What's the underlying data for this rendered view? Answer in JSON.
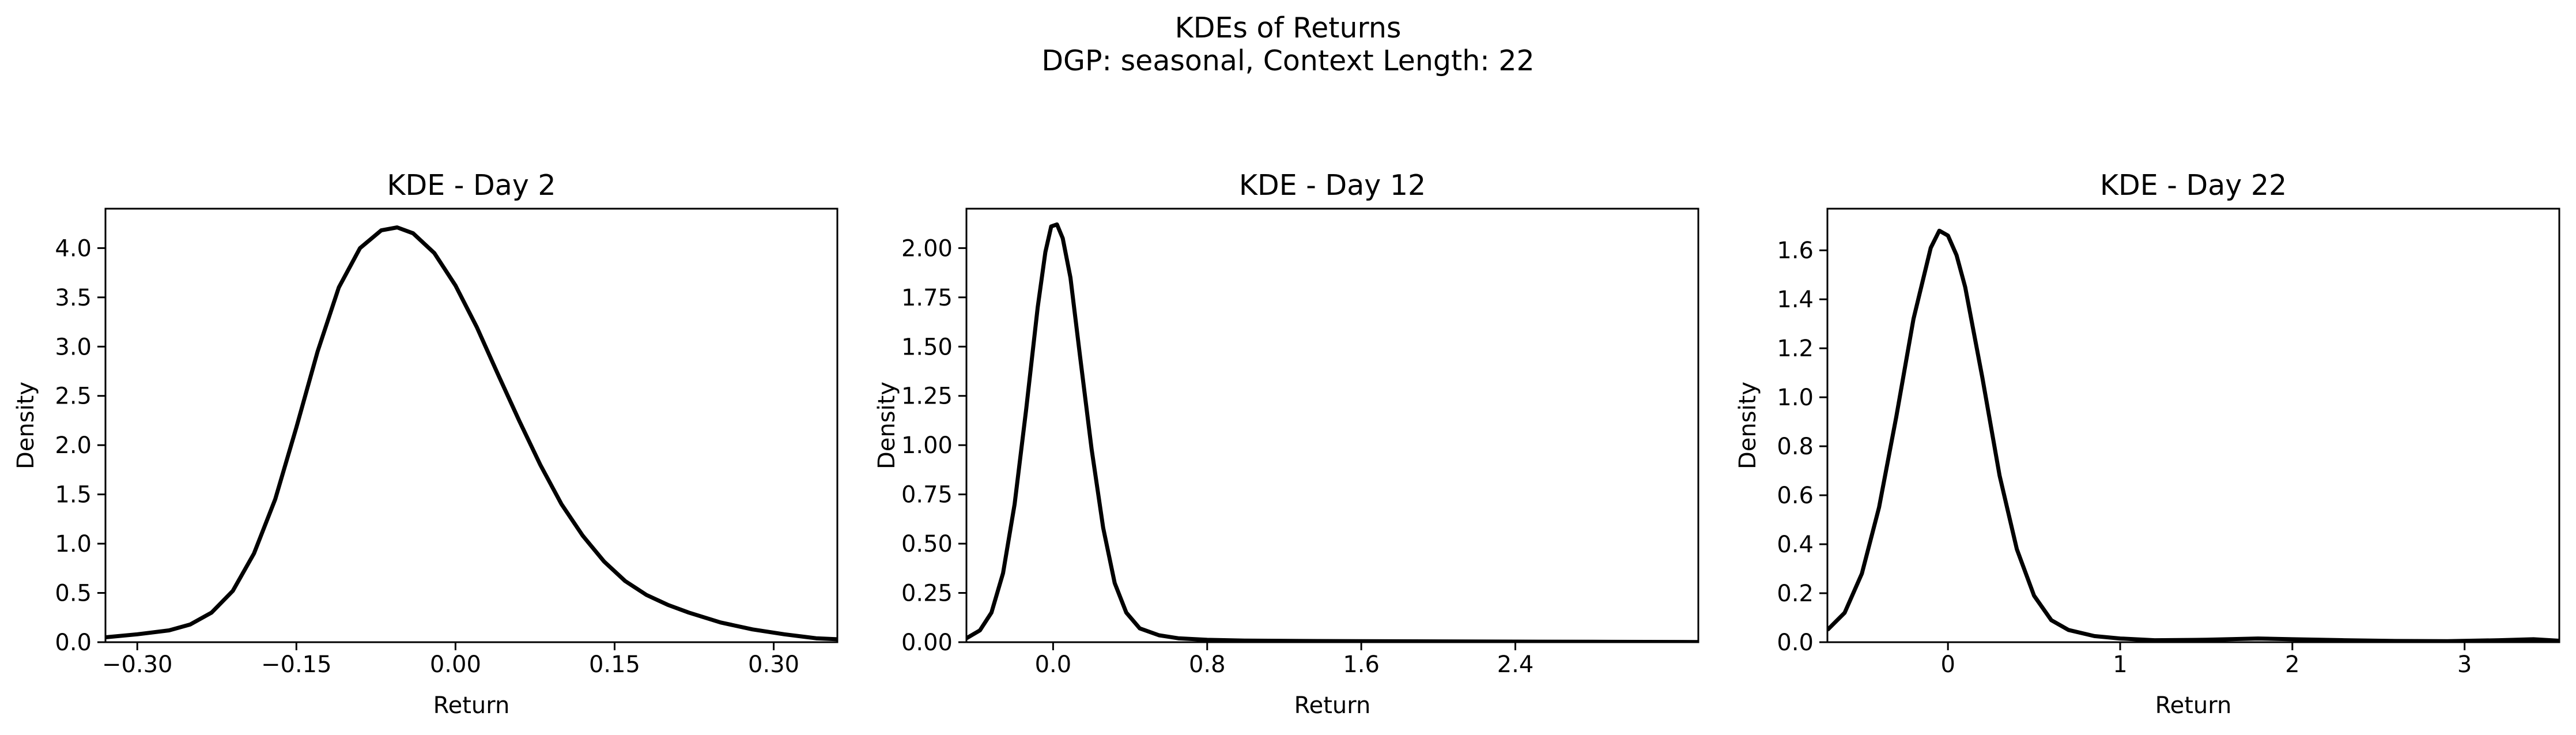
{
  "figure": {
    "title_line1": "KDEs of Returns",
    "title_line2": "DGP: seasonal, Context Length: 22"
  },
  "chart_data": [
    {
      "type": "line",
      "title": "KDE - Day 2",
      "xlabel": "Return",
      "ylabel": "Density",
      "xlim": [
        -0.33,
        0.36
      ],
      "ylim": [
        0,
        4.4
      ],
      "xticks": [
        -0.3,
        -0.15,
        0.0,
        0.15,
        0.3
      ],
      "xtick_labels": [
        "−0.30",
        "−0.15",
        "0.00",
        "0.15",
        "0.30"
      ],
      "yticks": [
        0.0,
        0.5,
        1.0,
        1.5,
        2.0,
        2.5,
        3.0,
        3.5,
        4.0
      ],
      "ytick_labels": [
        "0.0",
        "0.5",
        "1.0",
        "1.5",
        "2.0",
        "2.5",
        "3.0",
        "3.5",
        "4.0"
      ],
      "color": "#000000",
      "x": [
        -0.33,
        -0.3,
        -0.27,
        -0.25,
        -0.23,
        -0.21,
        -0.19,
        -0.17,
        -0.15,
        -0.13,
        -0.11,
        -0.09,
        -0.07,
        -0.055,
        -0.04,
        -0.02,
        0.0,
        0.02,
        0.04,
        0.06,
        0.08,
        0.1,
        0.12,
        0.14,
        0.16,
        0.18,
        0.2,
        0.22,
        0.25,
        0.28,
        0.31,
        0.34,
        0.36
      ],
      "y": [
        0.05,
        0.08,
        0.12,
        0.18,
        0.3,
        0.52,
        0.9,
        1.45,
        2.18,
        2.95,
        3.6,
        4.0,
        4.18,
        4.21,
        4.15,
        3.95,
        3.62,
        3.2,
        2.72,
        2.25,
        1.8,
        1.4,
        1.08,
        0.82,
        0.62,
        0.48,
        0.38,
        0.3,
        0.2,
        0.13,
        0.08,
        0.04,
        0.03
      ]
    },
    {
      "type": "line",
      "title": "KDE - Day 12",
      "xlabel": "Return",
      "ylabel": "Density",
      "xlim": [
        -0.45,
        3.35
      ],
      "ylim": [
        0,
        2.2
      ],
      "xticks": [
        0.0,
        0.8,
        1.6,
        2.4
      ],
      "xtick_labels": [
        "0.0",
        "0.8",
        "1.6",
        "2.4"
      ],
      "yticks": [
        0.0,
        0.25,
        0.5,
        0.75,
        1.0,
        1.25,
        1.5,
        1.75,
        2.0
      ],
      "ytick_labels": [
        "0.00",
        "0.25",
        "0.50",
        "0.75",
        "1.00",
        "1.25",
        "1.50",
        "1.75",
        "2.00"
      ],
      "color": "#000000",
      "x": [
        -0.45,
        -0.38,
        -0.32,
        -0.26,
        -0.2,
        -0.14,
        -0.08,
        -0.04,
        -0.01,
        0.02,
        0.05,
        0.09,
        0.14,
        0.2,
        0.26,
        0.32,
        0.38,
        0.45,
        0.55,
        0.65,
        0.8,
        1.0,
        1.3,
        1.6,
        2.0,
        2.4,
        2.8,
        3.35
      ],
      "y": [
        0.02,
        0.06,
        0.15,
        0.35,
        0.7,
        1.18,
        1.7,
        1.98,
        2.11,
        2.12,
        2.05,
        1.85,
        1.45,
        0.98,
        0.58,
        0.3,
        0.15,
        0.07,
        0.035,
        0.02,
        0.012,
        0.008,
        0.006,
        0.005,
        0.004,
        0.003,
        0.002,
        0.001
      ]
    },
    {
      "type": "line",
      "title": "KDE - Day 22",
      "xlabel": "Return",
      "ylabel": "Density",
      "xlim": [
        -0.7,
        3.55
      ],
      "ylim": [
        0,
        1.77
      ],
      "xticks": [
        0,
        1,
        2,
        3
      ],
      "xtick_labels": [
        "0",
        "1",
        "2",
        "3"
      ],
      "yticks": [
        0.0,
        0.2,
        0.4,
        0.6,
        0.8,
        1.0,
        1.2,
        1.4,
        1.6
      ],
      "ytick_labels": [
        "0.0",
        "0.2",
        "0.4",
        "0.6",
        "0.8",
        "1.0",
        "1.2",
        "1.4",
        "1.6"
      ],
      "color": "#000000",
      "x": [
        -0.7,
        -0.6,
        -0.5,
        -0.4,
        -0.3,
        -0.2,
        -0.1,
        -0.05,
        0.0,
        0.05,
        0.1,
        0.2,
        0.3,
        0.4,
        0.5,
        0.6,
        0.7,
        0.85,
        1.0,
        1.2,
        1.5,
        1.8,
        2.0,
        2.3,
        2.6,
        2.9,
        3.2,
        3.4,
        3.55
      ],
      "y": [
        0.05,
        0.12,
        0.28,
        0.55,
        0.92,
        1.32,
        1.61,
        1.68,
        1.66,
        1.58,
        1.45,
        1.08,
        0.68,
        0.38,
        0.19,
        0.09,
        0.05,
        0.025,
        0.015,
        0.008,
        0.01,
        0.015,
        0.012,
        0.008,
        0.005,
        0.004,
        0.008,
        0.012,
        0.006
      ]
    }
  ]
}
